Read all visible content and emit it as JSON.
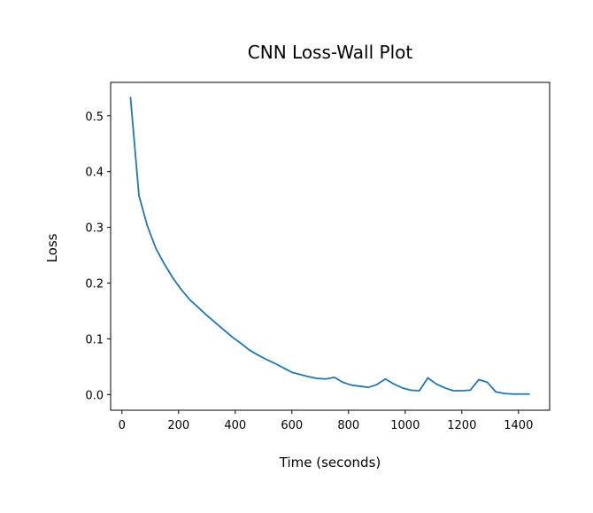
{
  "chart_data": {
    "type": "line",
    "title": "CNN Loss-Wall Plot",
    "xlabel": "Time (seconds)",
    "ylabel": "Loss",
    "xlim": [
      -40,
      1510
    ],
    "ylim": [
      -0.028,
      0.56
    ],
    "xticks": [
      0,
      200,
      400,
      600,
      800,
      1000,
      1200,
      1400
    ],
    "xtick_labels": [
      "0",
      "200",
      "400",
      "600",
      "800",
      "1000",
      "1200",
      "1400"
    ],
    "yticks": [
      0.0,
      0.1,
      0.2,
      0.3,
      0.4,
      0.5
    ],
    "ytick_labels": [
      "0.0",
      "0.1",
      "0.2",
      "0.3",
      "0.4",
      "0.5"
    ],
    "grid": false,
    "series": [
      {
        "color": "#1f77b4",
        "x": [
          30,
          60,
          90,
          120,
          150,
          180,
          210,
          240,
          270,
          300,
          330,
          360,
          390,
          420,
          450,
          480,
          510,
          540,
          570,
          600,
          630,
          660,
          690,
          720,
          750,
          780,
          810,
          840,
          870,
          900,
          930,
          960,
          990,
          1020,
          1050,
          1080,
          1110,
          1140,
          1170,
          1200,
          1230,
          1260,
          1290,
          1320,
          1350,
          1380,
          1410,
          1440
        ],
        "y": [
          0.534,
          0.357,
          0.302,
          0.262,
          0.234,
          0.209,
          0.188,
          0.17,
          0.156,
          0.142,
          0.129,
          0.116,
          0.103,
          0.092,
          0.08,
          0.071,
          0.063,
          0.056,
          0.048,
          0.04,
          0.036,
          0.032,
          0.029,
          0.028,
          0.031,
          0.022,
          0.017,
          0.015,
          0.013,
          0.018,
          0.028,
          0.019,
          0.012,
          0.008,
          0.007,
          0.03,
          0.019,
          0.012,
          0.007,
          0.007,
          0.008,
          0.027,
          0.022,
          0.005,
          0.002,
          0.001,
          0.001,
          0.001
        ]
      }
    ]
  }
}
